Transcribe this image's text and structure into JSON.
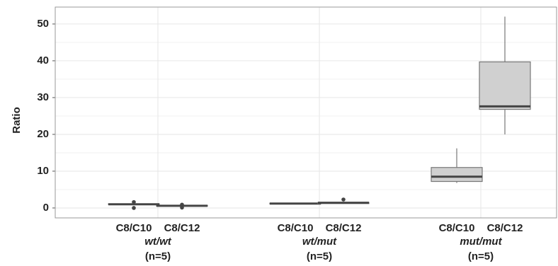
{
  "chart_data": {
    "type": "box",
    "y_label": "Ratio",
    "ylim": [
      -2.7,
      54.6
    ],
    "yticks": [
      0,
      10,
      20,
      30,
      40,
      50
    ],
    "minor_yticks": [
      5,
      15,
      25,
      35,
      45
    ],
    "grid": true,
    "box_color": "#d0d0d0",
    "groups": [
      {
        "name": "wt/wt",
        "n_label": "(n=5)",
        "boxes": [
          {
            "category": "C8/C10",
            "min": 0.9,
            "q1": 1.0,
            "median": 1.0,
            "q3": 1.1,
            "max": 1.2,
            "outliers": [
              1.6,
              0.0
            ]
          },
          {
            "category": "C8/C12",
            "min": 0.4,
            "q1": 0.5,
            "median": 0.6,
            "q3": 0.7,
            "max": 0.8,
            "outliers": [
              0.9,
              0.1
            ]
          }
        ]
      },
      {
        "name": "wt/mut",
        "n_label": "(n=5)",
        "boxes": [
          {
            "category": "C8/C10",
            "min": 1.0,
            "q1": 1.1,
            "median": 1.2,
            "q3": 1.3,
            "max": 1.4,
            "outliers": []
          },
          {
            "category": "C8/C12",
            "min": 1.1,
            "q1": 1.2,
            "median": 1.4,
            "q3": 1.5,
            "max": 1.6,
            "outliers": [
              2.3
            ]
          }
        ]
      },
      {
        "name": "mut/mut",
        "n_label": "(n=5)",
        "boxes": [
          {
            "category": "C8/C10",
            "min": 6.8,
            "q1": 7.2,
            "median": 8.5,
            "q3": 11.0,
            "max": 16.2,
            "outliers": []
          },
          {
            "category": "C8/C12",
            "min": 20.0,
            "q1": 26.8,
            "median": 27.6,
            "q3": 39.7,
            "max": 52.0,
            "outliers": []
          }
        ]
      }
    ]
  }
}
